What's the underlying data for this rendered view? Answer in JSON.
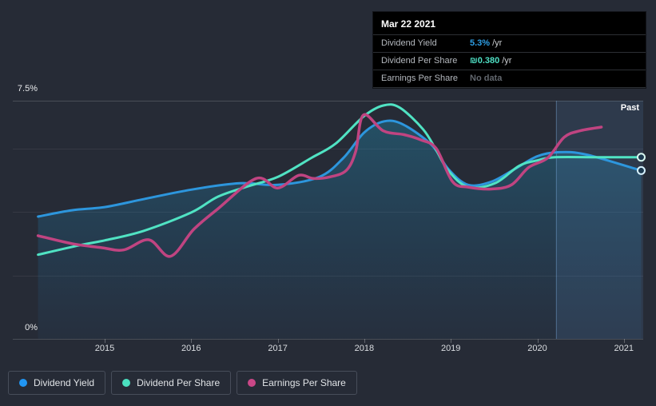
{
  "page": {
    "background": "#262b36"
  },
  "tooltip": {
    "date": "Mar 22 2021",
    "rows": [
      {
        "label": "Dividend Yield",
        "value": "5.3%",
        "suffix": "/yr",
        "value_color": "#2e9fe6"
      },
      {
        "label": "Dividend Per Share",
        "value": "₪0.380",
        "suffix": "/yr",
        "value_color": "#4fe0c5"
      },
      {
        "label": "Earnings Per Share",
        "value": "No data",
        "suffix": "",
        "value_color": "#62676e"
      }
    ]
  },
  "chart": {
    "past_label": "Past",
    "y_axis": {
      "top_label": "7.5%",
      "bottom_label": "0%"
    },
    "x_axis": {
      "labels": [
        "2015",
        "2016",
        "2017",
        "2018",
        "2019",
        "2020",
        "2021"
      ]
    }
  },
  "legend": [
    {
      "label": "Dividend Yield",
      "color": "#2196f3"
    },
    {
      "label": "Dividend Per Share",
      "color": "#4be0c0"
    },
    {
      "label": "Earnings Per Share",
      "color": "#ca4787"
    }
  ],
  "chart_data": {
    "type": "line",
    "title": "Dividend history",
    "x_range": [
      2014.23,
      2021.2
    ],
    "y_range": [
      0,
      7.5
    ],
    "y_unit": "percent",
    "grid": true,
    "gridlines_percent": [
      0,
      2,
      4,
      6,
      7.5
    ],
    "x_tick_years": [
      2015,
      2016,
      2017,
      2018,
      2019,
      2020,
      2021
    ],
    "highlight_band_x": [
      2020.22,
      2021.2
    ],
    "band_fill": "rgba(104,162,221,0.13)",
    "band_edge": "rgba(130,180,230,0.45)",
    "area_gradient_top": "rgba(33,170,210,0.32)",
    "area_gradient_bottom": "rgba(33,130,205,0.05)",
    "series": [
      {
        "name": "Dividend Yield",
        "color": "#2d96dd",
        "width": 3,
        "area": true,
        "end_marker": true,
        "marker_stroke": "#d6f0fb",
        "points": [
          [
            2014.23,
            3.85
          ],
          [
            2014.62,
            4.05
          ],
          [
            2015.0,
            4.15
          ],
          [
            2015.45,
            4.4
          ],
          [
            2016.0,
            4.7
          ],
          [
            2016.56,
            4.9
          ],
          [
            2017.0,
            4.85
          ],
          [
            2017.48,
            5.1
          ],
          [
            2017.76,
            5.7
          ],
          [
            2018.0,
            6.5
          ],
          [
            2018.23,
            6.85
          ],
          [
            2018.45,
            6.75
          ],
          [
            2018.78,
            6.1
          ],
          [
            2018.97,
            5.35
          ],
          [
            2019.2,
            4.85
          ],
          [
            2019.47,
            4.95
          ],
          [
            2019.74,
            5.35
          ],
          [
            2020.0,
            5.75
          ],
          [
            2020.25,
            5.88
          ],
          [
            2020.57,
            5.8
          ],
          [
            2021.2,
            5.3
          ]
        ]
      },
      {
        "name": "Dividend Per Share",
        "color": "#50e3c3",
        "width": 3,
        "area": false,
        "end_marker": true,
        "marker_stroke": "#d9f9f1",
        "points": [
          [
            2014.23,
            2.65
          ],
          [
            2014.71,
            2.95
          ],
          [
            2015.0,
            3.1
          ],
          [
            2015.45,
            3.4
          ],
          [
            2016.0,
            3.98
          ],
          [
            2016.31,
            4.48
          ],
          [
            2016.65,
            4.8
          ],
          [
            2017.0,
            5.1
          ],
          [
            2017.39,
            5.7
          ],
          [
            2017.67,
            6.15
          ],
          [
            2017.99,
            7.0
          ],
          [
            2018.22,
            7.35
          ],
          [
            2018.41,
            7.28
          ],
          [
            2018.68,
            6.6
          ],
          [
            2018.83,
            5.95
          ],
          [
            2018.97,
            5.3
          ],
          [
            2019.2,
            4.78
          ],
          [
            2019.51,
            4.9
          ],
          [
            2019.79,
            5.45
          ],
          [
            2020.0,
            5.62
          ],
          [
            2020.2,
            5.72
          ],
          [
            2020.7,
            5.72
          ],
          [
            2021.2,
            5.72
          ]
        ]
      },
      {
        "name": "Earnings Per Share",
        "color": "#c04481",
        "width": 3.5,
        "area": false,
        "end_marker": false,
        "points": [
          [
            2014.23,
            3.25
          ],
          [
            2014.62,
            3.0
          ],
          [
            2014.97,
            2.87
          ],
          [
            2015.22,
            2.8
          ],
          [
            2015.51,
            3.12
          ],
          [
            2015.76,
            2.6
          ],
          [
            2016.03,
            3.45
          ],
          [
            2016.31,
            4.1
          ],
          [
            2016.75,
            5.05
          ],
          [
            2017.0,
            4.75
          ],
          [
            2017.24,
            5.15
          ],
          [
            2017.41,
            5.05
          ],
          [
            2017.6,
            5.1
          ],
          [
            2017.79,
            5.3
          ],
          [
            2017.9,
            5.9
          ],
          [
            2017.99,
            7.05
          ],
          [
            2018.22,
            6.55
          ],
          [
            2018.46,
            6.43
          ],
          [
            2018.65,
            6.27
          ],
          [
            2018.83,
            6.0
          ],
          [
            2019.02,
            4.95
          ],
          [
            2019.2,
            4.78
          ],
          [
            2019.47,
            4.72
          ],
          [
            2019.7,
            4.85
          ],
          [
            2019.9,
            5.4
          ],
          [
            2020.12,
            5.7
          ],
          [
            2020.31,
            6.35
          ],
          [
            2020.49,
            6.55
          ],
          [
            2020.74,
            6.67
          ]
        ]
      }
    ]
  }
}
